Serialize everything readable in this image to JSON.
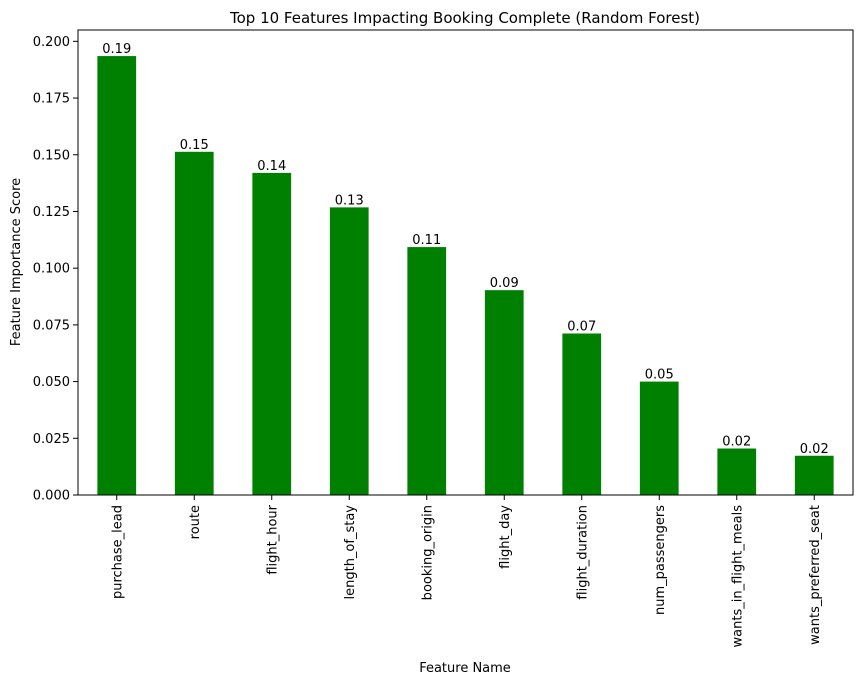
{
  "chart_data": {
    "type": "bar",
    "title": "Top 10 Features Impacting Booking Complete (Random Forest)",
    "xlabel": "Feature Name",
    "ylabel": "Feature Importance Score",
    "ylim": [
      0,
      0.205
    ],
    "yticks": [
      "0.000",
      "0.025",
      "0.050",
      "0.075",
      "0.100",
      "0.125",
      "0.150",
      "0.175",
      "0.200"
    ],
    "ytick_values": [
      0,
      0.025,
      0.05,
      0.075,
      0.1,
      0.125,
      0.15,
      0.175,
      0.2
    ],
    "categories": [
      "purchase_lead",
      "route",
      "flight_hour",
      "length_of_stay",
      "booking_origin",
      "flight_day",
      "flight_duration",
      "num_passengers",
      "wants_in_flight_meals",
      "wants_preferred_seat"
    ],
    "values": [
      0.1935,
      0.1513,
      0.142,
      0.1268,
      0.1093,
      0.0903,
      0.0712,
      0.05,
      0.0205,
      0.0173
    ],
    "data_labels": [
      "0.19",
      "0.15",
      "0.14",
      "0.13",
      "0.11",
      "0.09",
      "0.07",
      "0.05",
      "0.02",
      "0.02"
    ],
    "bar_color": "#008000",
    "grid": false,
    "legend": "none"
  }
}
